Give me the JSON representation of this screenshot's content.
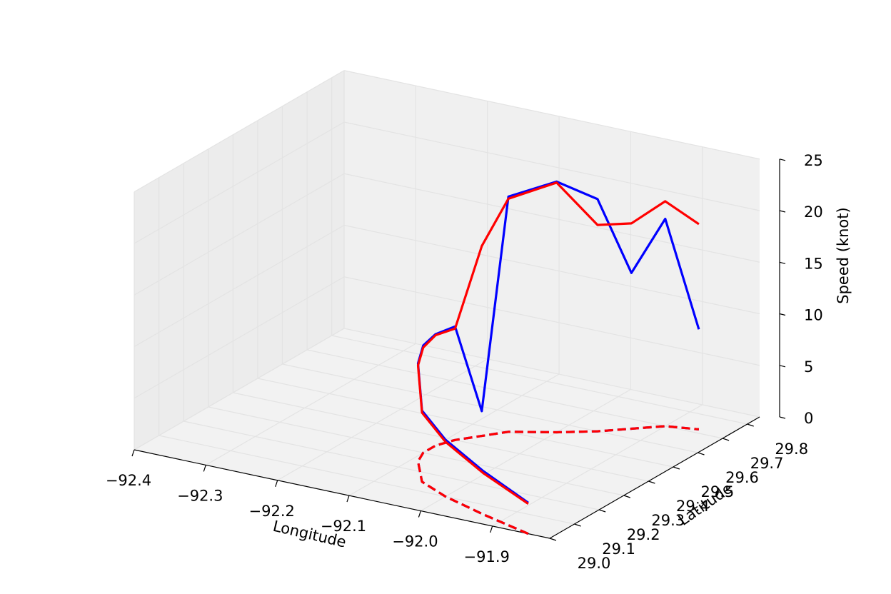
{
  "chart_data": {
    "type": "line",
    "projection": "3d",
    "title": "",
    "xlabel": "Longitude",
    "ylabel": "Latitude",
    "zlabel": "Speed (knot)",
    "xlim": [
      -92.4,
      -91.82
    ],
    "ylim": [
      29.0,
      29.85
    ],
    "zlim": [
      0,
      25
    ],
    "xticks": [
      "−92.4",
      "−92.3",
      "−92.2",
      "−92.1",
      "−92.0",
      "−91.9"
    ],
    "yticks": [
      "29.0",
      "29.1",
      "29.2",
      "29.3",
      "29.4",
      "29.5",
      "29.6",
      "29.7",
      "29.8"
    ],
    "zticks": [
      "0",
      "5",
      "10",
      "15",
      "20",
      "25"
    ],
    "grid": true,
    "colors": {
      "blue": "#0000ff",
      "red": "#ff0000",
      "pane": "#f2f2f2",
      "grid": "#e3e3e3"
    },
    "track": {
      "lon": [
        -91.85,
        -91.93,
        -92.0,
        -92.05,
        -92.07,
        -92.09,
        -92.1,
        -92.1,
        -92.09,
        -92.07,
        -92.05,
        -92.0,
        -91.96,
        -91.93,
        -91.9,
        -91.86
      ],
      "lat": [
        29.0,
        29.05,
        29.1,
        29.15,
        29.2,
        29.25,
        29.3,
        29.35,
        29.4,
        29.45,
        29.5,
        29.55,
        29.6,
        29.65,
        29.7,
        29.72
      ]
    },
    "series": [
      {
        "name": "",
        "color": "blue",
        "style": "solid",
        "values": [
          3.0,
          4.2,
          5.5,
          6.9,
          8.2,
          9.5,
          10.4,
          10.8,
          11.0,
          2.4,
          22.8,
          24.3,
          22.5,
          15.1,
          20.1,
          9.7
        ]
      },
      {
        "name": "",
        "color": "red",
        "style": "solid",
        "values": [
          2.9,
          4.0,
          5.3,
          6.7,
          8.0,
          9.3,
          10.2,
          10.7,
          10.8,
          18.4,
          22.6,
          24.2,
          20.0,
          19.9,
          21.8,
          19.9
        ]
      },
      {
        "name": "",
        "color": "blue",
        "style": "dashed",
        "projection_of": "track at speed 0",
        "values": [
          0,
          0,
          0,
          0,
          0,
          0,
          0,
          0,
          0,
          0,
          0,
          0,
          0,
          0,
          0,
          0
        ]
      },
      {
        "name": "",
        "color": "red",
        "style": "dashed",
        "projection_of": "track at speed 0",
        "values": [
          0,
          0,
          0,
          0,
          0,
          0,
          0,
          0,
          0,
          0,
          0,
          0,
          0,
          0,
          0,
          0
        ]
      }
    ]
  }
}
